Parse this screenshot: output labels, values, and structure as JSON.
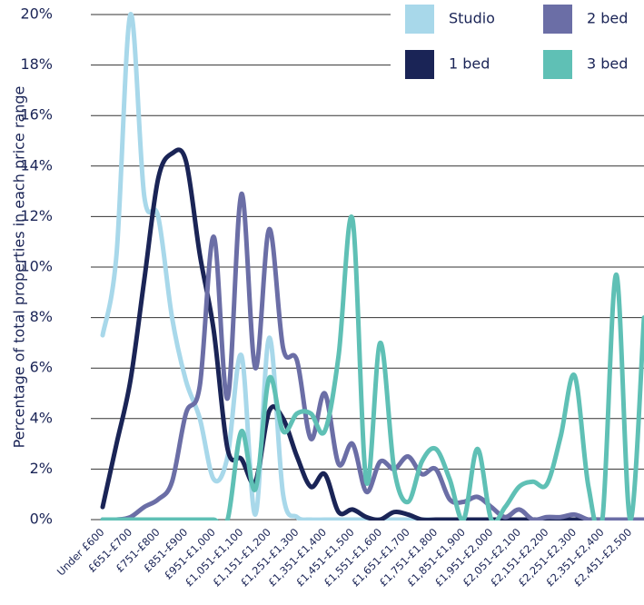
{
  "chart_data": {
    "type": "line",
    "y_label": "Percentage of total properties in each price range",
    "categories": [
      "Under £600",
      null,
      "£651-£700",
      null,
      "£751-£800",
      null,
      "£851-£900",
      null,
      "£951-£1,000",
      null,
      "£1,051-£1,100",
      null,
      "£1,151-£1,200",
      null,
      "£1,251-£1,300",
      null,
      "£1,351-£1,400",
      null,
      "£1,451-£1,500",
      null,
      "£1,551-£1,600",
      null,
      "£1,651-£1,700",
      null,
      "£1,751-£1,800",
      null,
      "£1,851-£1,900",
      null,
      "£1,951-£2,000",
      null,
      "£2,051-£2,100",
      null,
      "£2,151-£2,200",
      null,
      "£2,251-£2,300",
      null,
      "£2,351-£2,400",
      null,
      "£2,451-£2,500",
      null
    ],
    "series": [
      {
        "name": "Studio",
        "color": "#a8d8ea",
        "values": [
          7.3,
          10.5,
          20,
          12.8,
          12,
          8,
          5.5,
          4,
          1.6,
          2.5,
          6.5,
          0.2,
          7.2,
          1,
          0.1,
          0,
          0,
          0,
          0,
          0,
          0,
          0,
          0,
          0,
          0,
          0,
          0,
          0,
          0,
          0,
          0,
          0,
          0,
          0,
          0,
          0,
          0,
          0,
          0,
          0
        ]
      },
      {
        "name": "1 bed",
        "color": "#1a2456",
        "values": [
          0.5,
          3,
          5.5,
          9.5,
          13.5,
          14.5,
          14.2,
          10.5,
          7.5,
          2.8,
          2.4,
          1.5,
          4.3,
          4,
          2.5,
          1.3,
          1.8,
          0.3,
          0.4,
          0.1,
          0,
          0.3,
          0.2,
          0,
          0,
          0,
          0,
          0,
          0,
          0,
          0,
          0,
          0,
          0,
          0,
          0,
          0,
          0,
          0,
          0
        ]
      },
      {
        "name": "2 bed",
        "color": "#6b6ea6",
        "values": [
          0,
          0,
          0.1,
          0.5,
          0.8,
          1.5,
          4.2,
          5.3,
          11.2,
          4.8,
          12.9,
          6,
          11.5,
          6.8,
          6.3,
          3.2,
          5,
          2.2,
          3,
          1.1,
          2.3,
          2,
          2.5,
          1.8,
          2,
          0.8,
          0.7,
          0.9,
          0.5,
          0.1,
          0.4,
          0,
          0.1,
          0.1,
          0.2,
          0,
          0,
          0,
          0,
          0
        ]
      },
      {
        "name": "3 bed",
        "color": "#5fc0b5",
        "values": [
          0,
          0,
          0,
          0,
          0,
          0,
          0,
          0,
          0,
          0,
          3.5,
          1.2,
          5.6,
          3.5,
          4.2,
          4.2,
          3.5,
          6.5,
          11.9,
          1.5,
          7,
          2,
          0.7,
          2.3,
          2.8,
          1.6,
          0,
          2.8,
          0,
          0.5,
          1.3,
          1.5,
          1.4,
          3.3,
          5.7,
          1.3,
          0,
          9.7,
          0,
          8
        ]
      }
    ],
    "ylim": [
      0,
      20
    ],
    "yticks": [
      {
        "value": 0,
        "label": "0%"
      },
      {
        "value": 2,
        "label": "2%"
      },
      {
        "value": 4,
        "label": "4%"
      },
      {
        "value": 6,
        "label": "6%"
      },
      {
        "value": 8,
        "label": "8%"
      },
      {
        "value": 10,
        "label": "10%"
      },
      {
        "value": 12,
        "label": "12%"
      },
      {
        "value": 14,
        "label": "14%"
      },
      {
        "value": 16,
        "label": "16%"
      },
      {
        "value": 18,
        "label": "18%"
      },
      {
        "value": 20,
        "label": "20%"
      }
    ],
    "grid": true,
    "legend": "upper right"
  }
}
